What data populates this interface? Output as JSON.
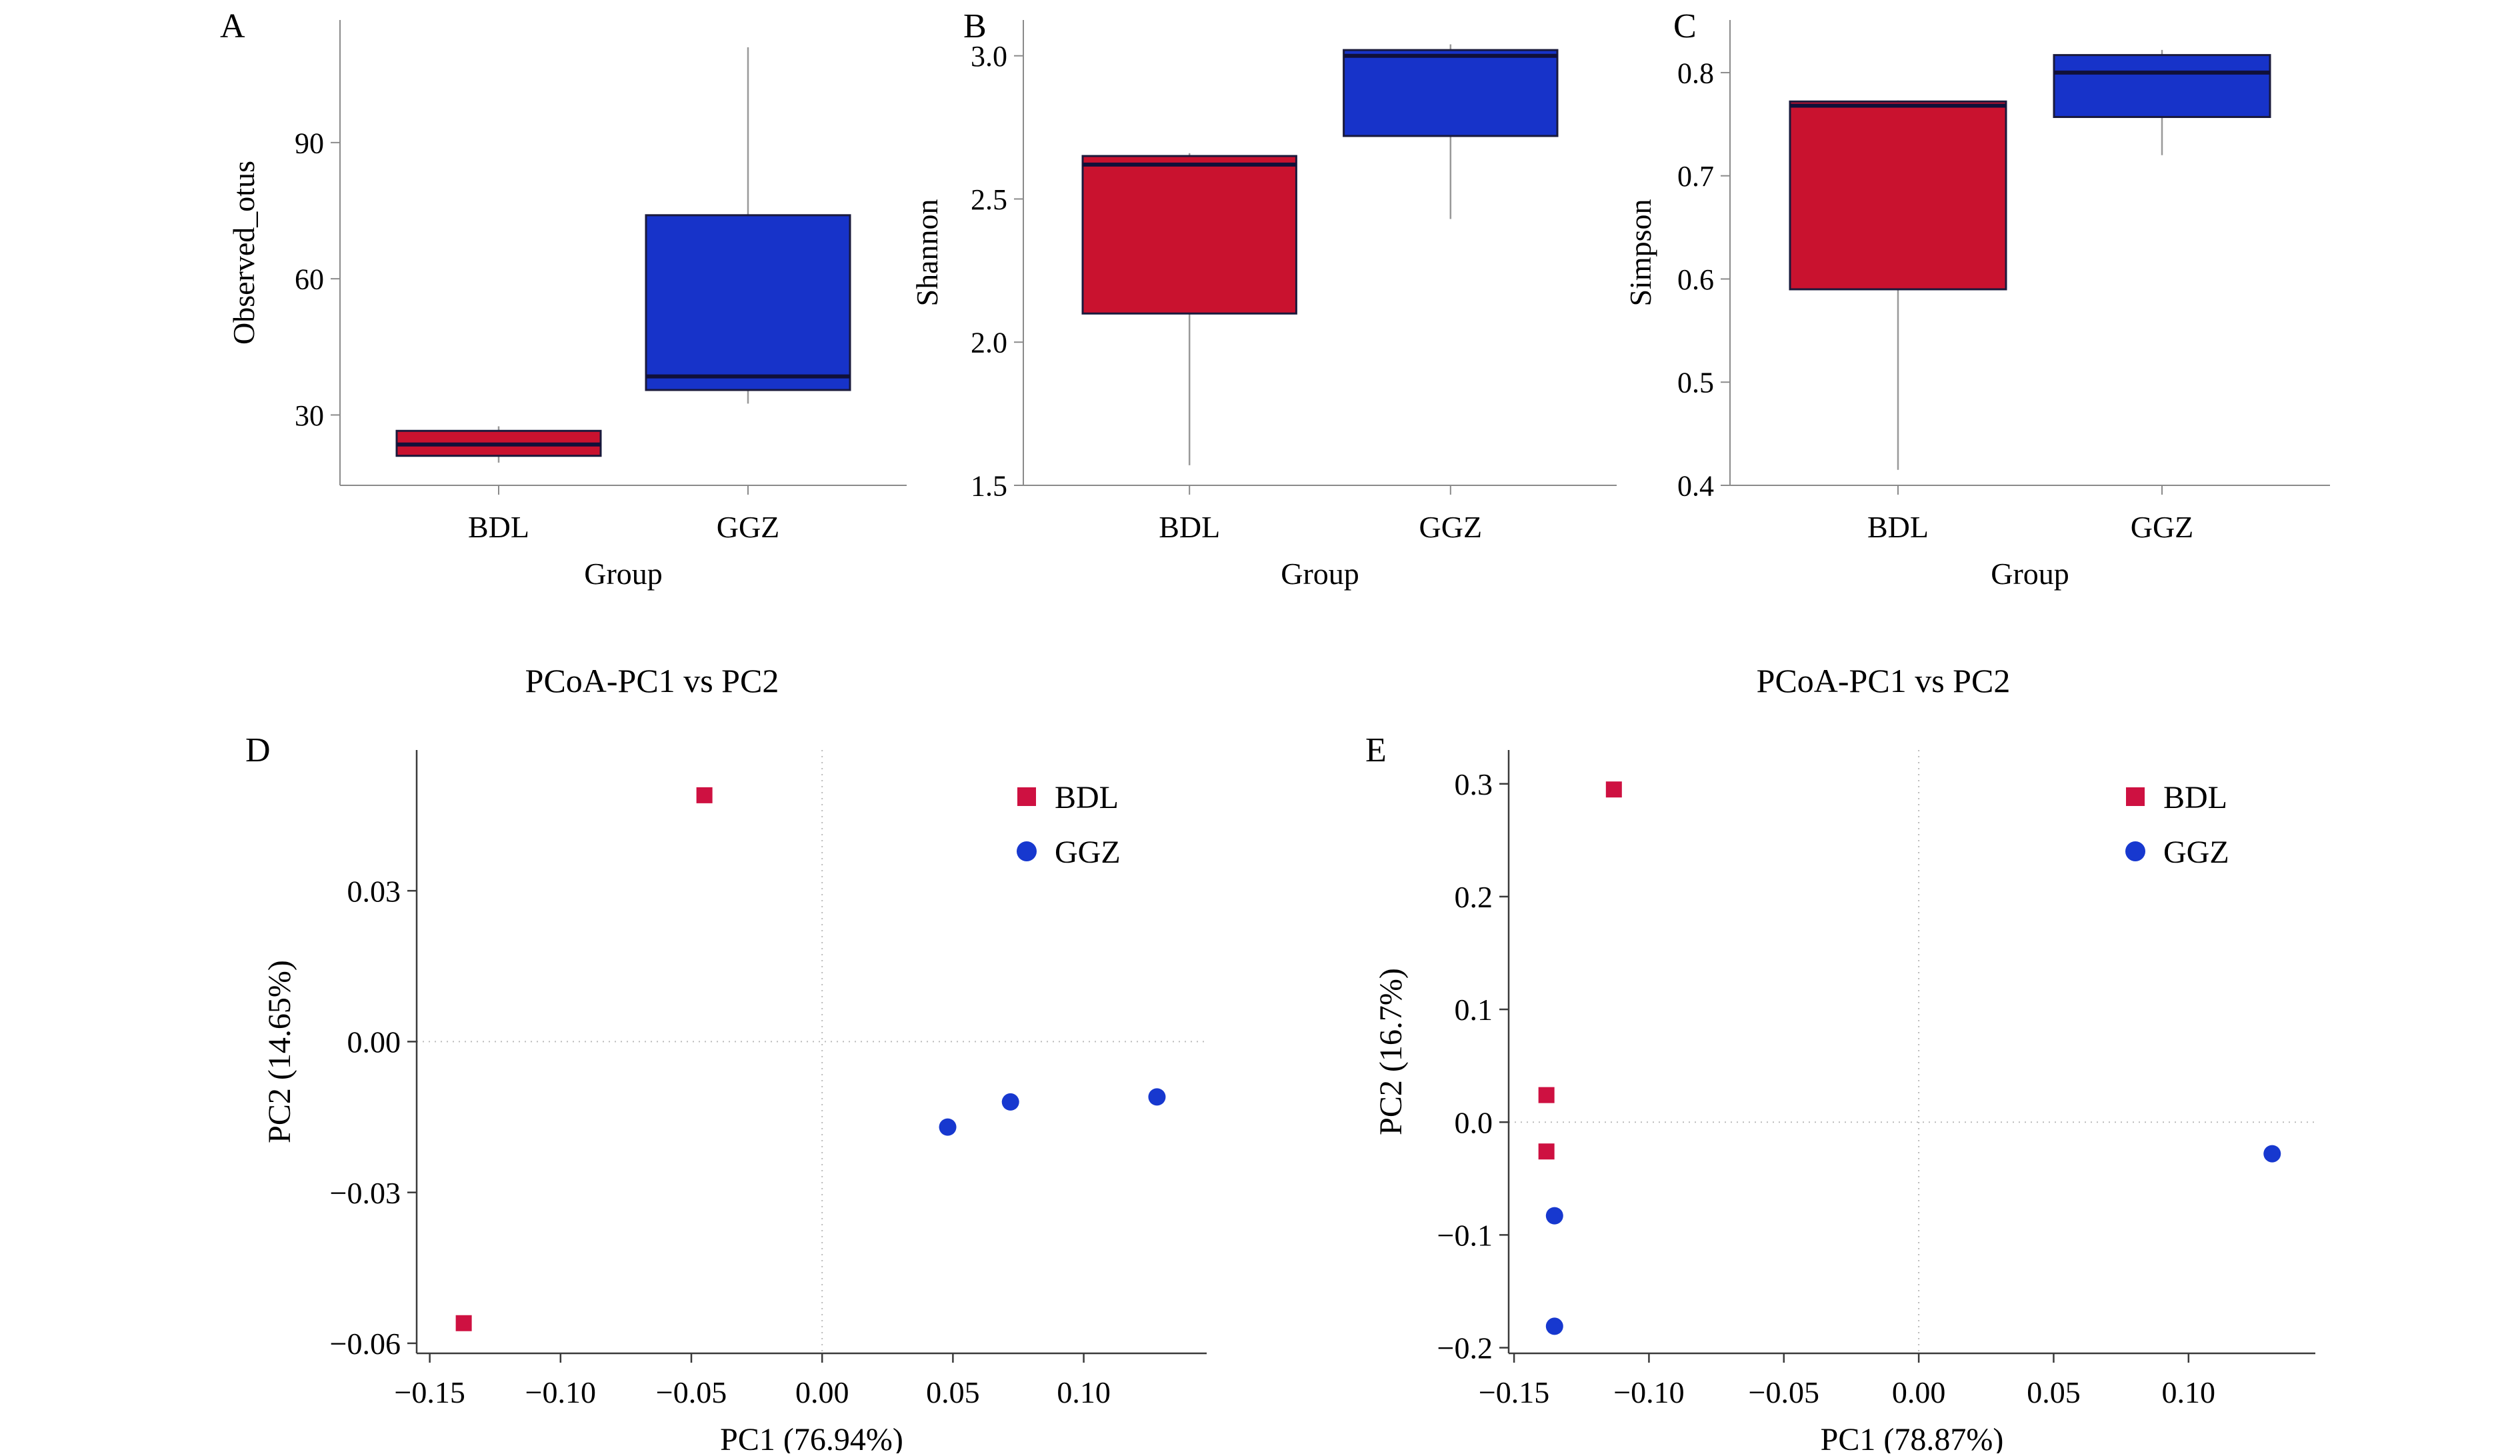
{
  "colors": {
    "bdl_box": "#C9122F",
    "ggz_box": "#1733C9",
    "bdl_marker": "#CE1141",
    "ggz_marker": "#1738CF",
    "box_edge": "#1A1A3C",
    "median_line": "#10103A",
    "whisker": "#999999",
    "axis_box": "#8A8A8A",
    "axis_scatter": "#3A3A3A",
    "zero_line": "#BBBBBB",
    "text": "#000000"
  },
  "groups": [
    "BDL",
    "GGZ"
  ],
  "chart_data": [
    {
      "panel_label": "A",
      "type": "box",
      "title": "",
      "ylabel": "Observed_otus",
      "xlabel": "Group",
      "categories": [
        "BDL",
        "GGZ"
      ],
      "ylim": [
        14.5,
        117
      ],
      "yticks": [
        30,
        60,
        90
      ],
      "ytick_labels": [
        "30",
        "60",
        "90"
      ],
      "boxes": [
        {
          "group": "BDL",
          "lo": 19.5,
          "q1": 21,
          "median": 23.5,
          "q3": 26.5,
          "hi": 27.5
        },
        {
          "group": "GGZ",
          "lo": 32.5,
          "q1": 35.5,
          "median": 38.5,
          "q3": 74,
          "hi": 111
        }
      ]
    },
    {
      "panel_label": "B",
      "type": "box",
      "title": "",
      "ylabel": "Shannon",
      "xlabel": "Group",
      "categories": [
        "BDL",
        "GGZ"
      ],
      "ylim": [
        1.5,
        3.125
      ],
      "yticks": [
        1.5,
        2.0,
        2.5,
        3.0
      ],
      "ytick_labels": [
        "1.5",
        "2.0",
        "2.5",
        "3.0"
      ],
      "boxes": [
        {
          "group": "BDL",
          "lo": 1.57,
          "q1": 2.1,
          "median": 2.62,
          "q3": 2.65,
          "hi": 2.66
        },
        {
          "group": "GGZ",
          "lo": 2.43,
          "q1": 2.72,
          "median": 3.0,
          "q3": 3.02,
          "hi": 3.04
        }
      ]
    },
    {
      "panel_label": "C",
      "type": "box",
      "title": "",
      "ylabel": "Simpson",
      "xlabel": "Group",
      "categories": [
        "BDL",
        "GGZ"
      ],
      "ylim": [
        0.4,
        0.851
      ],
      "yticks": [
        0.4,
        0.5,
        0.6,
        0.7,
        0.8
      ],
      "ytick_labels": [
        "0.4",
        "0.5",
        "0.6",
        "0.7",
        "0.8"
      ],
      "boxes": [
        {
          "group": "BDL",
          "lo": 0.415,
          "q1": 0.59,
          "median": 0.768,
          "q3": 0.772,
          "hi": 0.773
        },
        {
          "group": "GGZ",
          "lo": 0.72,
          "q1": 0.757,
          "median": 0.8,
          "q3": 0.817,
          "hi": 0.822
        }
      ]
    },
    {
      "panel_label": "D",
      "type": "scatter",
      "title": "PCoA-PC1 vs PC2",
      "xlabel": "PC1 (76.94%)",
      "ylabel": "PC2 (14.65%)",
      "xlim": [
        -0.155,
        0.147
      ],
      "ylim": [
        -0.062,
        0.058
      ],
      "xticks": [
        -0.15,
        -0.1,
        -0.05,
        0.0,
        0.05,
        0.1
      ],
      "xtick_labels": [
        "−0.15",
        "−0.10",
        "−0.05",
        "0.00",
        "0.05",
        "0.10"
      ],
      "yticks": [
        0.03,
        0.0,
        -0.03,
        -0.06
      ],
      "ytick_labels": [
        "0.03",
        "0.00",
        "−0.03",
        "−0.06"
      ],
      "grid": "zero-lines-dotted",
      "legend_position": "top-right",
      "series": [
        {
          "name": "BDL",
          "marker": "square",
          "points": [
            [
              -0.045,
              0.049
            ],
            [
              -0.137,
              -0.056
            ]
          ]
        },
        {
          "name": "GGZ",
          "marker": "circle",
          "points": [
            [
              0.048,
              -0.017
            ],
            [
              0.072,
              -0.012
            ],
            [
              0.128,
              -0.011
            ]
          ]
        }
      ]
    },
    {
      "panel_label": "E",
      "type": "scatter",
      "title": "PCoA-PC1 vs PC2",
      "xlabel": "PC1 (78.87%)",
      "ylabel": "PC2 (16.7%)",
      "xlim": [
        -0.152,
        0.147
      ],
      "ylim": [
        -0.205,
        0.33
      ],
      "xticks": [
        -0.15,
        -0.1,
        -0.05,
        0.0,
        0.05,
        0.1
      ],
      "xtick_labels": [
        "−0.15",
        "−0.10",
        "−0.05",
        "0.00",
        "0.05",
        "0.10"
      ],
      "yticks": [
        0.3,
        0.2,
        0.1,
        0.0,
        -0.1,
        -0.2
      ],
      "ytick_labels": [
        "0.3",
        "0.2",
        "0.1",
        "0.0",
        "−0.1",
        "−0.2"
      ],
      "grid": "zero-lines-dotted",
      "legend_position": "top-right",
      "series": [
        {
          "name": "BDL",
          "marker": "square",
          "points": [
            [
              -0.113,
              0.295
            ],
            [
              -0.138,
              0.024
            ],
            [
              -0.138,
              -0.026
            ]
          ]
        },
        {
          "name": "GGZ",
          "marker": "circle",
          "points": [
            [
              -0.135,
              -0.083
            ],
            [
              -0.135,
              -0.181
            ],
            [
              0.131,
              -0.028
            ]
          ]
        }
      ]
    }
  ],
  "legend": {
    "entries": [
      {
        "label": "BDL",
        "marker": "square"
      },
      {
        "label": "GGZ",
        "marker": "circle"
      }
    ]
  }
}
